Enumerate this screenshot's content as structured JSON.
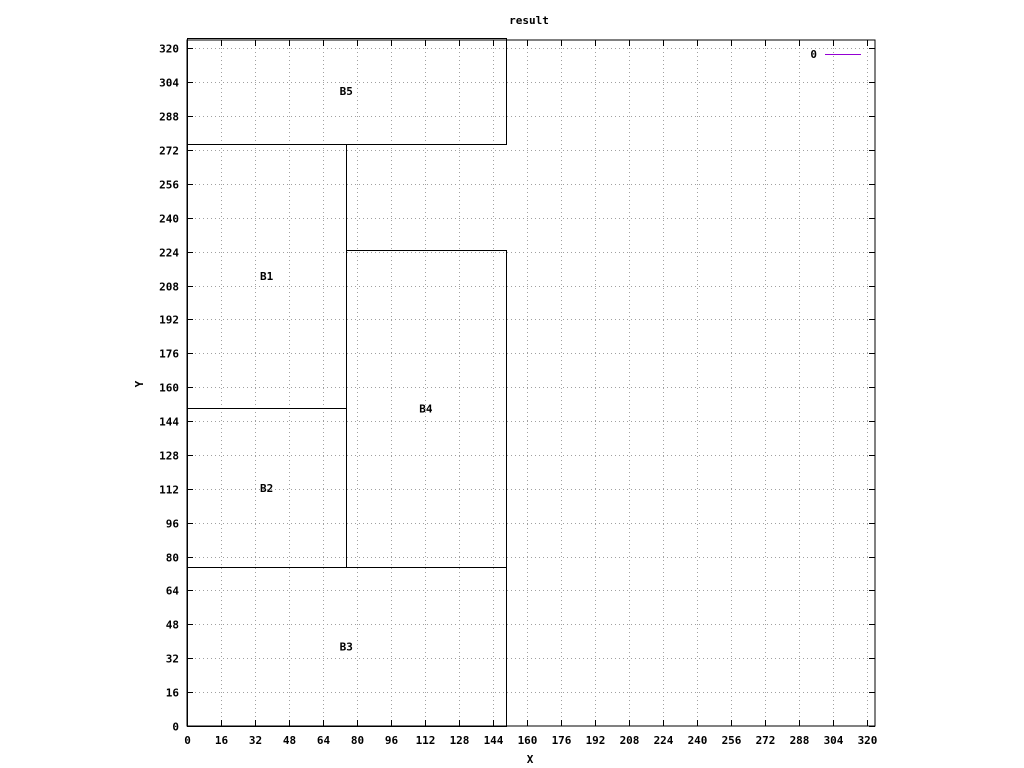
{
  "chart_data": {
    "type": "diagram-boxes",
    "title": "result",
    "xlabel": "X",
    "ylabel": "Y",
    "xlim": [
      0,
      324
    ],
    "ylim": [
      0,
      324
    ],
    "xticks": [
      0,
      16,
      32,
      48,
      64,
      80,
      96,
      112,
      128,
      144,
      160,
      176,
      192,
      208,
      224,
      240,
      256,
      272,
      288,
      304,
      320
    ],
    "yticks": [
      0,
      16,
      32,
      48,
      64,
      80,
      96,
      112,
      128,
      144,
      160,
      176,
      192,
      208,
      224,
      240,
      256,
      272,
      288,
      304,
      320
    ],
    "grid": true,
    "legend": {
      "position": "top-right",
      "entries": [
        {
          "label": "0",
          "color": "#9400d3"
        }
      ]
    },
    "boxes": [
      {
        "label": "B1",
        "x0": 0,
        "y0": 150,
        "x1": 75,
        "y1": 275
      },
      {
        "label": "B2",
        "x0": 0,
        "y0": 75,
        "x1": 75,
        "y1": 150
      },
      {
        "label": "B3",
        "x0": 0,
        "y0": 0,
        "x1": 150,
        "y1": 75
      },
      {
        "label": "B4",
        "x0": 75,
        "y0": 75,
        "x1": 150,
        "y1": 225
      },
      {
        "label": "B5",
        "x0": 0,
        "y0": 275,
        "x1": 150,
        "y1": 325
      }
    ]
  }
}
